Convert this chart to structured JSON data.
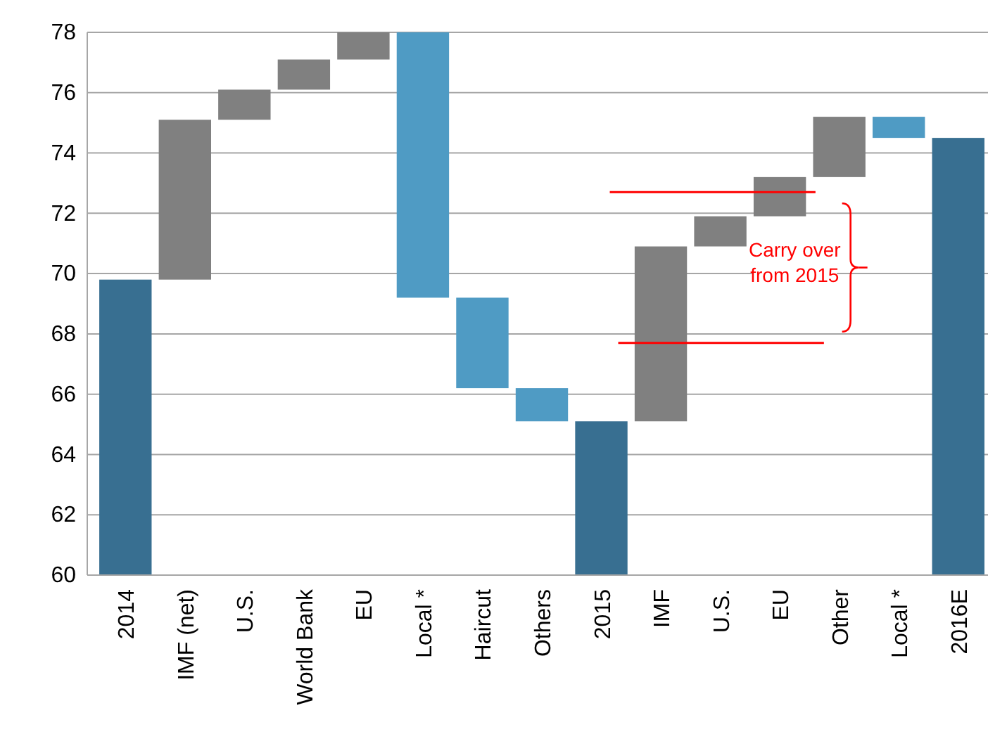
{
  "chart_data": {
    "type": "bar",
    "categories": [
      "2014",
      "IMF (net)",
      "U.S.",
      "World Bank",
      "EU",
      "Local *",
      "Haircut",
      "Others",
      "2015",
      "IMF",
      "U.S.",
      "EU",
      "Other",
      "Local *",
      "2016E"
    ],
    "base": [
      60,
      69.8,
      75.1,
      76.1,
      77.1,
      69.2,
      66.2,
      65.1,
      60,
      65.1,
      70.9,
      71.9,
      73.2,
      74.5,
      60
    ],
    "values": [
      9.8,
      5.3,
      1.0,
      1.0,
      0.9,
      8.8,
      3.0,
      1.1,
      5.1,
      5.8,
      1.0,
      1.3,
      2.0,
      0.7,
      14.5
    ],
    "colors": [
      "#386f91",
      "#808080",
      "#808080",
      "#808080",
      "#808080",
      "#4f9bc4",
      "#4f9bc4",
      "#4f9bc4",
      "#386f91",
      "#808080",
      "#808080",
      "#808080",
      "#808080",
      "#4f9bc4",
      "#386f91"
    ],
    "ylim": [
      60,
      78
    ],
    "yticks": [
      60,
      62,
      64,
      66,
      68,
      70,
      72,
      74,
      76,
      78
    ],
    "grid": "y",
    "ref_lines": [
      {
        "axis": "y",
        "value": 72.7,
        "color": "#ff0000"
      },
      {
        "axis": "y",
        "value": 67.7,
        "color": "#ff0000"
      }
    ],
    "annotations": [
      "Carry over from 2015"
    ]
  }
}
